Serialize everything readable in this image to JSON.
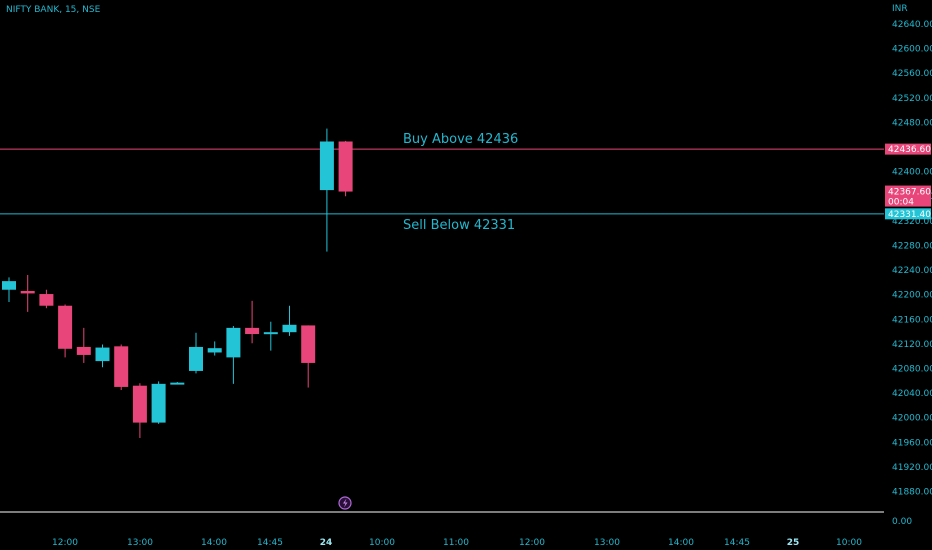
{
  "header": {
    "ticker": "NIFTY BANK, 15, NSE",
    "currency": "INR"
  },
  "colors": {
    "background": "#000000",
    "bull": "#22c4d6",
    "bear": "#e8457a",
    "axis_text": "#22b8cf",
    "buy_line": "#e8457a",
    "sell_line": "#22b8cf"
  },
  "chart_data": {
    "type": "candlestick",
    "interval": "15",
    "ylim": [
      41840,
      42660
    ],
    "y_ticks": [
      "42640.00",
      "42600.00",
      "42560.00",
      "42520.00",
      "42480.00",
      "42400.00",
      "42360.00",
      "42320.00",
      "42280.00",
      "42240.00",
      "42200.00",
      "42160.00",
      "42120.00",
      "42080.00",
      "42040.00",
      "42000.00",
      "41960.00",
      "41920.00",
      "41880.00"
    ],
    "x_ticks": [
      "12:00",
      "13:00",
      "14:00",
      "14:45",
      "24",
      "10:00",
      "11:00",
      "12:00",
      "13:00",
      "14:00",
      "14:45",
      "25",
      "10:00"
    ],
    "candles": [
      {
        "o": 42208,
        "h": 42228,
        "l": 42188,
        "c": 42222
      },
      {
        "o": 42206,
        "h": 42232,
        "l": 42172,
        "c": 42202
      },
      {
        "o": 42201,
        "h": 42208,
        "l": 42178,
        "c": 42182
      },
      {
        "o": 42182,
        "h": 42184,
        "l": 42098,
        "c": 42112
      },
      {
        "o": 42115,
        "h": 42146,
        "l": 42089,
        "c": 42102
      },
      {
        "o": 42092,
        "h": 42119,
        "l": 42082,
        "c": 42114
      },
      {
        "o": 42116,
        "h": 42119,
        "l": 42045,
        "c": 42050
      },
      {
        "o": 42052,
        "h": 42056,
        "l": 41967,
        "c": 41992
      },
      {
        "o": 41992,
        "h": 42059,
        "l": 41990,
        "c": 42055
      },
      {
        "o": 42056,
        "h": 42058,
        "l": 42055,
        "c": 42057
      },
      {
        "o": 42076,
        "h": 42138,
        "l": 42072,
        "c": 42115
      },
      {
        "o": 42106,
        "h": 42124,
        "l": 42101,
        "c": 42113
      },
      {
        "o": 42098,
        "h": 42149,
        "l": 42055,
        "c": 42146
      },
      {
        "o": 42146,
        "h": 42190,
        "l": 42121,
        "c": 42136
      },
      {
        "o": 42137,
        "h": 42156,
        "l": 42109,
        "c": 42139
      },
      {
        "o": 42139,
        "h": 42182,
        "l": 42133,
        "c": 42151
      },
      {
        "o": 42150,
        "h": 42150,
        "l": 42049,
        "c": 42089
      },
      {
        "o": 42370,
        "h": 42470,
        "l": 42270,
        "c": 42449
      },
      {
        "o": 42449,
        "h": 42450,
        "l": 42360,
        "c": 42367.6
      }
    ],
    "levels": [
      {
        "name": "buy",
        "label": "Buy Above 42436",
        "price": 42436.6,
        "price_label": "42436.60"
      },
      {
        "name": "sell",
        "label": "Sell Below 42331",
        "price": 42331.4,
        "price_label": "42331.40"
      }
    ],
    "last_price": {
      "value": 42367.6,
      "label": "42367.60",
      "countdown": "00:04"
    },
    "volume_scale_label": "0.00"
  }
}
